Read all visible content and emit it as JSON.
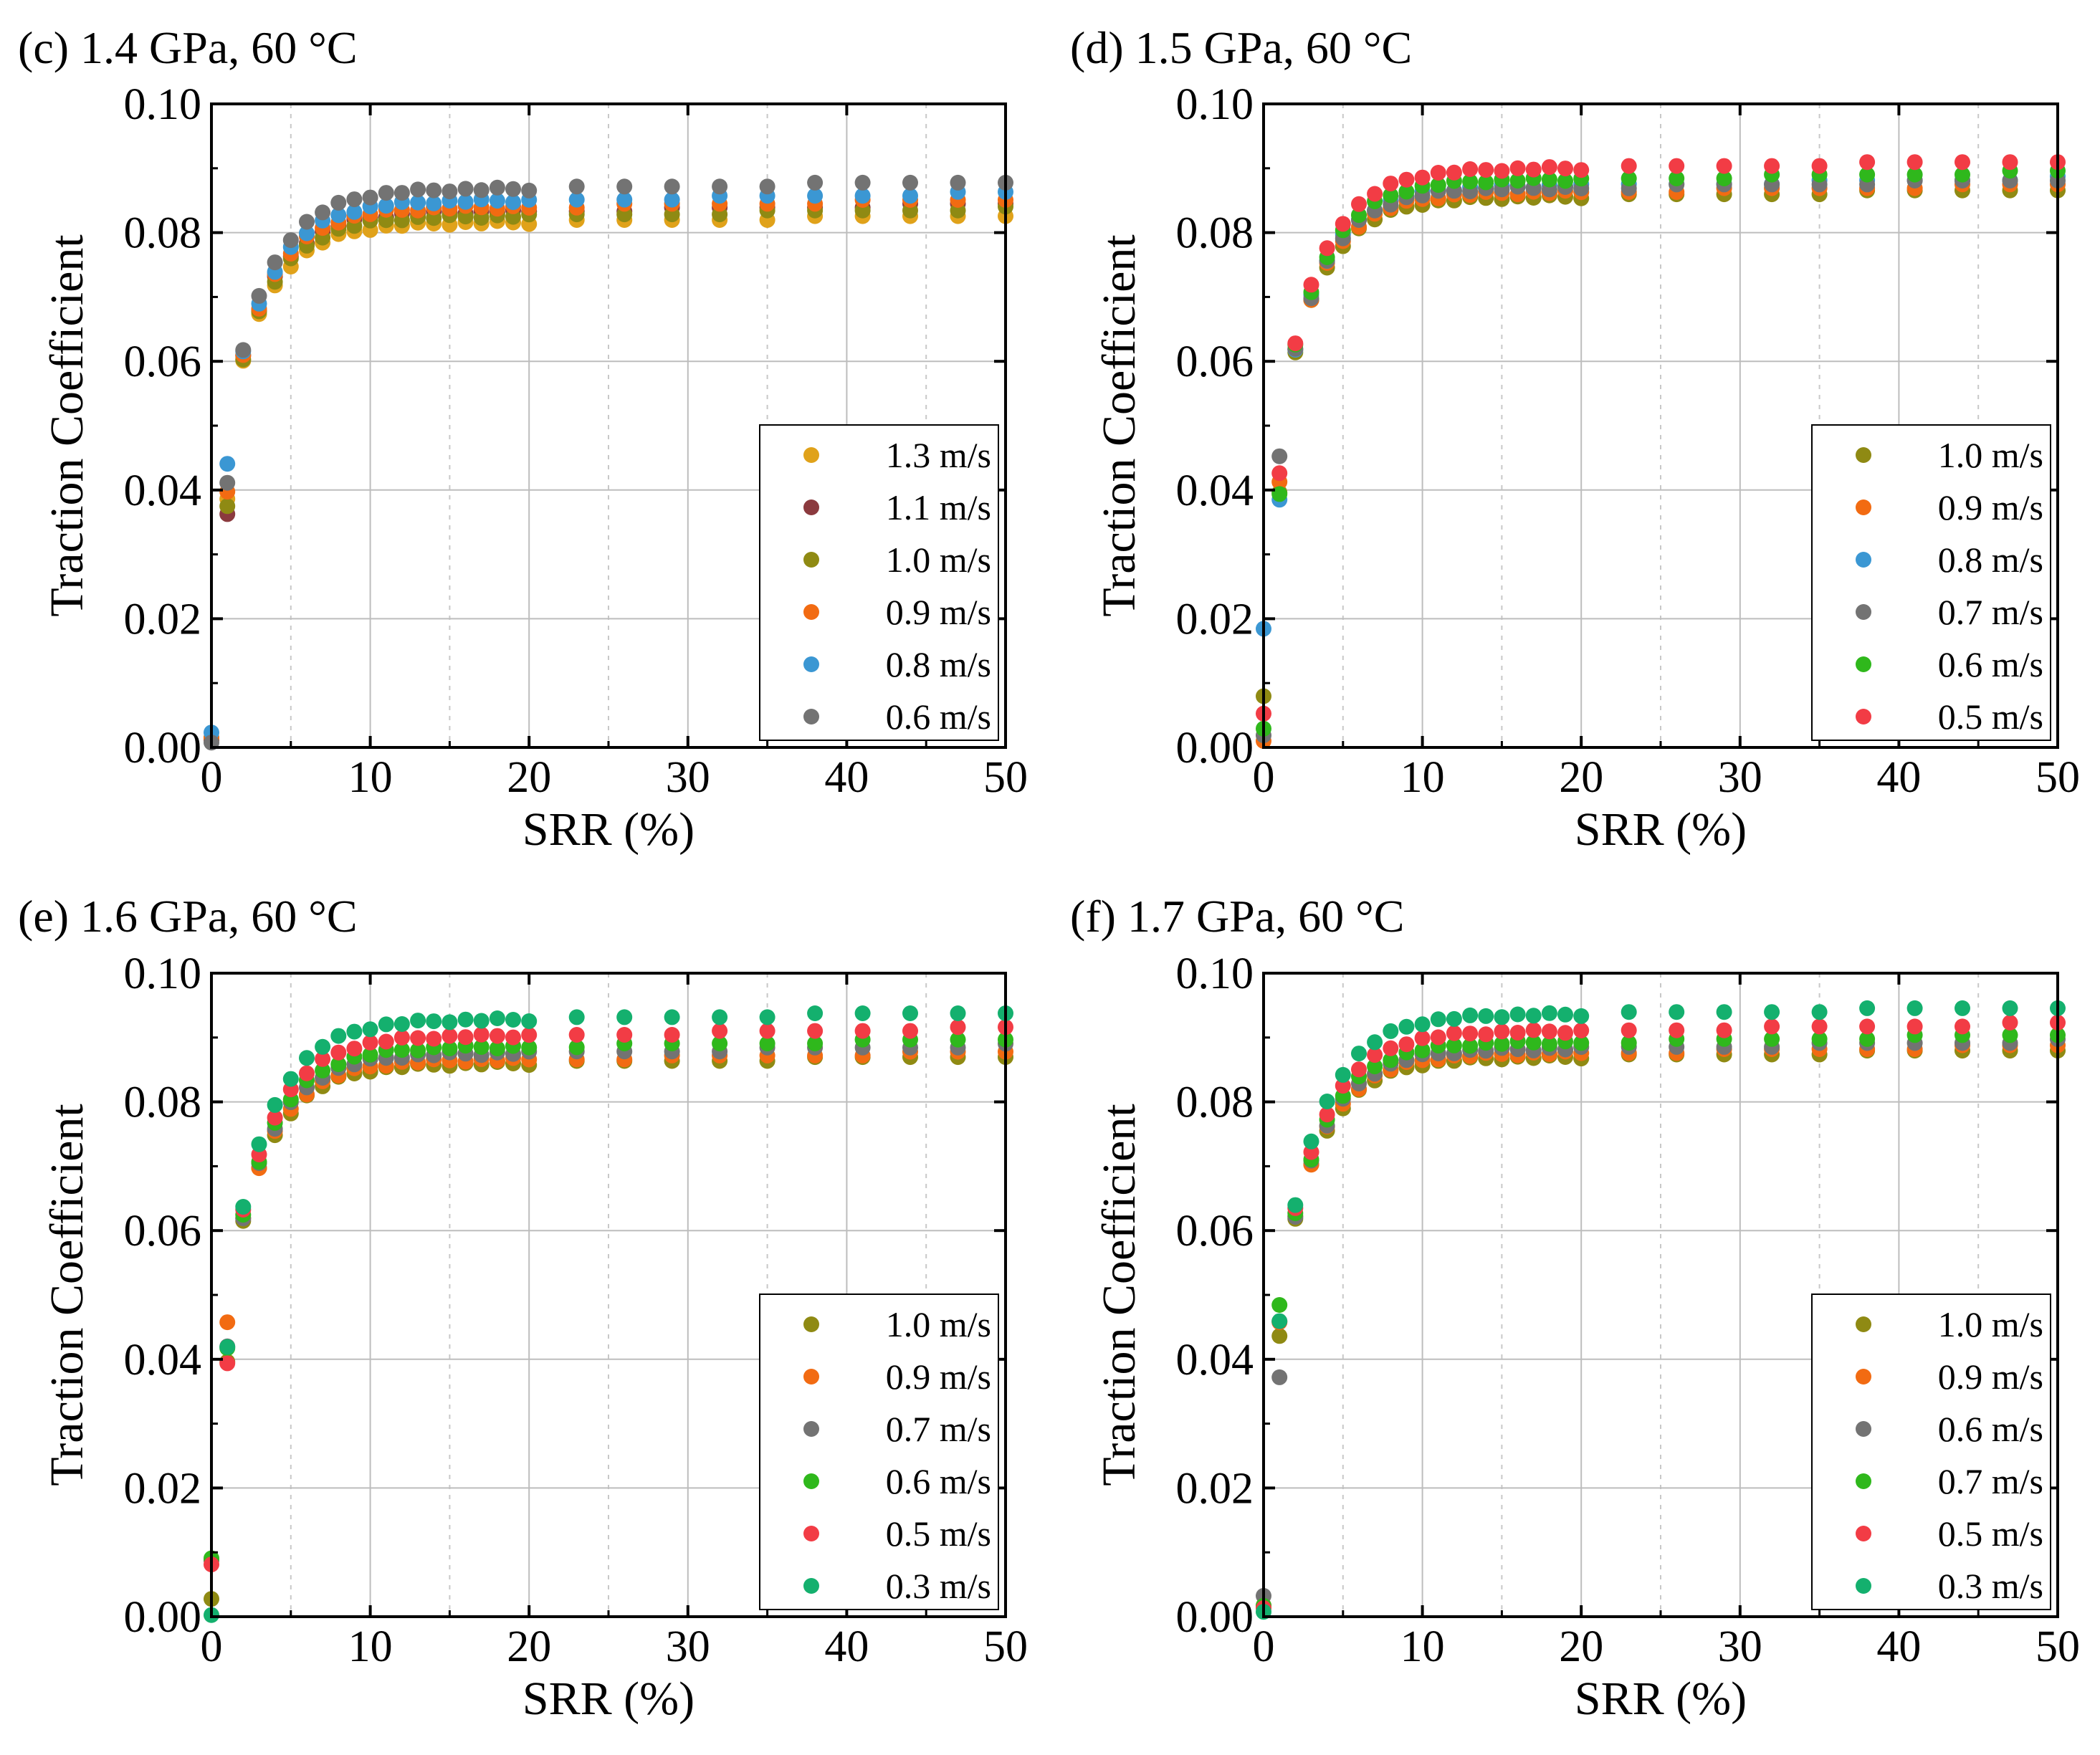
{
  "chart_data": [
    {
      "type": "scatter",
      "title": "(c) 1.4 GPa, 60 °C",
      "xlabel": "SRR (%)",
      "ylabel": "Traction Coefficient",
      "xlim": [
        0,
        50
      ],
      "ylim": [
        0,
        0.1
      ],
      "xticks": [
        "0",
        "10",
        "20",
        "30",
        "40",
        "50"
      ],
      "yticks": [
        "0.00",
        "0.02",
        "0.04",
        "0.06",
        "0.08",
        "0.10"
      ],
      "grid": true,
      "legend_position": "lower-right",
      "series": [
        {
          "name": "1.3 m/s",
          "color": "#e0a21a",
          "final": 0.0828,
          "start": 0.0015,
          "first": 0.0385
        },
        {
          "name": "1.1 m/s",
          "color": "#8b3a3e",
          "final": 0.0845,
          "start": 0.0012,
          "first": 0.0365
        },
        {
          "name": "1.0 m/s",
          "color": "#8f8a13",
          "final": 0.0838,
          "start": 0.0013,
          "first": 0.0375
        },
        {
          "name": "0.9 m/s",
          "color": "#f26b12",
          "final": 0.0852,
          "start": 0.0016,
          "first": 0.0395
        },
        {
          "name": "0.8 m/s",
          "color": "#3b97d3",
          "final": 0.0862,
          "start": 0.0022,
          "first": 0.0442
        },
        {
          "name": "0.6 m/s",
          "color": "#737373",
          "final": 0.088,
          "start": 0.001,
          "first": 0.041
        }
      ]
    },
    {
      "type": "scatter",
      "title": "(d) 1.5 GPa, 60 °C",
      "xlabel": "SRR (%)",
      "ylabel": "Traction Coefficient",
      "xlim": [
        0,
        50
      ],
      "ylim": [
        0,
        0.1
      ],
      "xticks": [
        "0",
        "10",
        "20",
        "30",
        "40",
        "50"
      ],
      "yticks": [
        "0.00",
        "0.02",
        "0.04",
        "0.06",
        "0.08",
        "0.10"
      ],
      "grid": true,
      "legend_position": "lower-right",
      "series": [
        {
          "name": "1.0 m/s",
          "color": "#8f8a13",
          "final": 0.0868,
          "start": 0.0082,
          "first": 0.0395
        },
        {
          "name": "0.9 m/s",
          "color": "#f26b12",
          "final": 0.0875,
          "start": 0.001,
          "first": 0.0415
        },
        {
          "name": "0.8 m/s",
          "color": "#3b97d3",
          "final": 0.0885,
          "start": 0.0182,
          "first": 0.0385
        },
        {
          "name": "0.7 m/s",
          "color": "#737373",
          "final": 0.0882,
          "start": 0.002,
          "first": 0.045
        },
        {
          "name": "0.6 m/s",
          "color": "#2fb81c",
          "final": 0.0895,
          "start": 0.0028,
          "first": 0.0395
        },
        {
          "name": "0.5 m/s",
          "color": "#f23c45",
          "final": 0.0912,
          "start": 0.0055,
          "first": 0.0425
        }
      ]
    },
    {
      "type": "scatter",
      "title": "(e) 1.6 GPa, 60 °C",
      "xlabel": "SRR (%)",
      "ylabel": "Traction Coefficient",
      "xlim": [
        0,
        50
      ],
      "ylim": [
        0,
        0.1
      ],
      "xticks": [
        "0",
        "10",
        "20",
        "30",
        "40",
        "50"
      ],
      "yticks": [
        "0.00",
        "0.02",
        "0.04",
        "0.06",
        "0.08",
        "0.10"
      ],
      "grid": true,
      "legend_position": "lower-right",
      "series": [
        {
          "name": "1.0 m/s",
          "color": "#8f8a13",
          "final": 0.0872,
          "start": 0.003,
          "first": 0.0395
        },
        {
          "name": "0.9 m/s",
          "color": "#f26b12",
          "final": 0.0878,
          "start": 0.0088,
          "first": 0.046
        },
        {
          "name": "0.7 m/s",
          "color": "#737373",
          "final": 0.0888,
          "start": 0.0085,
          "first": 0.042
        },
        {
          "name": "0.6 m/s",
          "color": "#2fb81c",
          "final": 0.0898,
          "start": 0.0092,
          "first": 0.0415
        },
        {
          "name": "0.5 m/s",
          "color": "#f23c45",
          "final": 0.0915,
          "start": 0.008,
          "first": 0.0395
        },
        {
          "name": "0.3 m/s",
          "color": "#14b06e",
          "final": 0.094,
          "start": 0.0005,
          "first": 0.0418
        }
      ]
    },
    {
      "type": "scatter",
      "title": "(f) 1.7 GPa, 60 °C",
      "xlabel": "SRR (%)",
      "ylabel": "Traction Coefficient",
      "xlim": [
        0,
        50
      ],
      "ylim": [
        0,
        0.1
      ],
      "xticks": [
        "0",
        "10",
        "20",
        "30",
        "40",
        "50"
      ],
      "yticks": [
        "0.00",
        "0.02",
        "0.04",
        "0.06",
        "0.08",
        "0.10"
      ],
      "grid": true,
      "legend_position": "lower-right",
      "series": [
        {
          "name": "1.0 m/s",
          "color": "#8f8a13",
          "final": 0.0882,
          "start": 0.002,
          "first": 0.0435
        },
        {
          "name": "0.9 m/s",
          "color": "#f26b12",
          "final": 0.0888,
          "start": 0.0015,
          "first": 0.046
        },
        {
          "name": "0.6 m/s",
          "color": "#737373",
          "final": 0.0895,
          "start": 0.003,
          "first": 0.0372
        },
        {
          "name": "0.7 m/s",
          "color": "#2fb81c",
          "final": 0.0905,
          "start": 0.0018,
          "first": 0.0482
        },
        {
          "name": "0.5 m/s",
          "color": "#f23c45",
          "final": 0.0922,
          "start": 0.0012,
          "first": 0.046
        },
        {
          "name": "0.3 m/s",
          "color": "#14b06e",
          "final": 0.0948,
          "start": 0.001,
          "first": 0.0458
        }
      ]
    }
  ]
}
